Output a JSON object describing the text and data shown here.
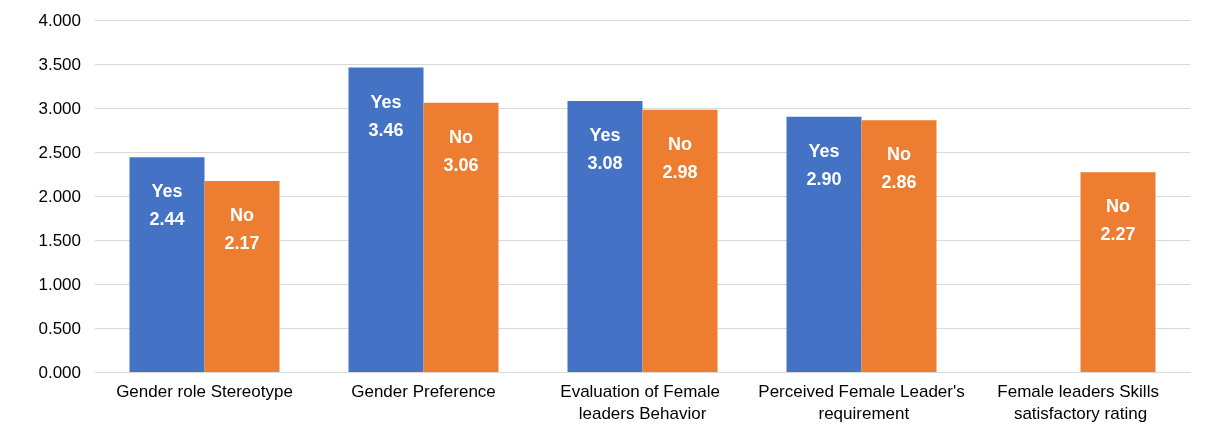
{
  "chart_data": {
    "type": "bar",
    "categories": [
      "Gender role Stereotype",
      "Gender Preference",
      "Evaluation of Female leaders Behavior",
      "Perceived Female Leader's requirement",
      "Female leaders Skills satisfactory rating"
    ],
    "series": [
      {
        "name": "Yes",
        "color": "#4472c4",
        "values": [
          2.44,
          3.46,
          3.08,
          2.9,
          null
        ],
        "value_labels": [
          "2.44",
          "3.46",
          "3.08",
          "2.90",
          null
        ]
      },
      {
        "name": "No",
        "color": "#ed7d31",
        "values": [
          2.17,
          3.06,
          2.98,
          2.86,
          2.27
        ],
        "value_labels": [
          "2.17",
          "3.06",
          "2.98",
          "2.86",
          "2.27"
        ]
      }
    ],
    "ylim": [
      0,
      4
    ],
    "yticks": [
      {
        "value": 0,
        "label": "0.000"
      },
      {
        "value": 0.5,
        "label": "0.500"
      },
      {
        "value": 1,
        "label": "1.000"
      },
      {
        "value": 1.5,
        "label": "1.500"
      },
      {
        "value": 2,
        "label": "2.000"
      },
      {
        "value": 2.5,
        "label": "2.500"
      },
      {
        "value": 3,
        "label": "3.000"
      },
      {
        "value": 3.5,
        "label": "3.500"
      },
      {
        "value": 4,
        "label": "4.000"
      }
    ],
    "grid": "y",
    "legend": false
  }
}
